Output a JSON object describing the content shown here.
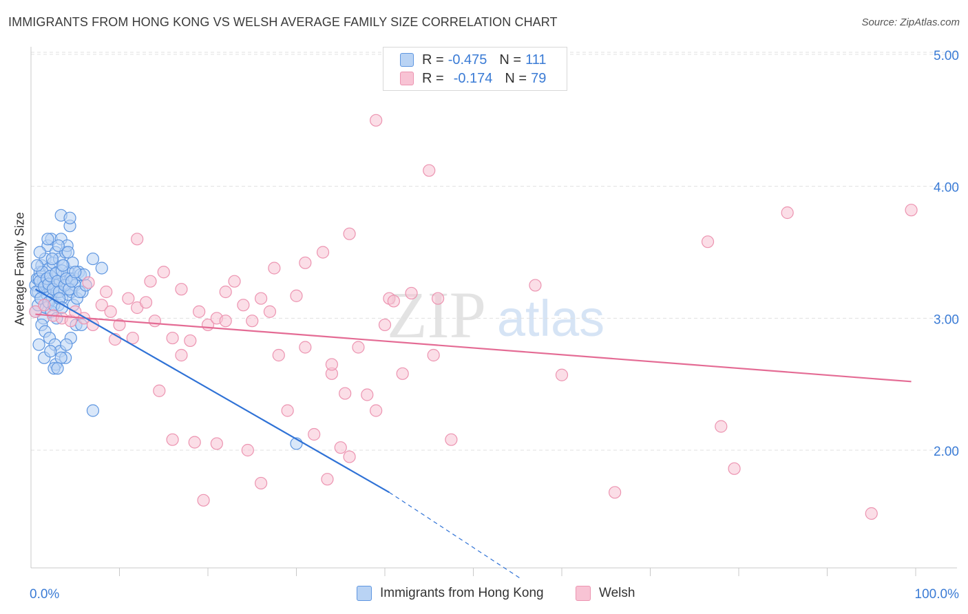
{
  "title": "IMMIGRANTS FROM HONG KONG VS WELSH AVERAGE FAMILY SIZE CORRELATION CHART",
  "source": "Source: ZipAtlas.com",
  "watermark": {
    "zip": "ZIP",
    "atlas": "atlas"
  },
  "legend": {
    "rows": [
      {
        "r_label": "R =",
        "r_value": "-0.475",
        "n_label": "N =",
        "n_value": "111"
      },
      {
        "r_label": "R =",
        "r_value": "-0.174",
        "n_label": "N =",
        "n_value": "79"
      }
    ]
  },
  "colors": {
    "blue_fill": "#b9d3f4",
    "blue_stroke": "#5d95e0",
    "blue_line": "#2f72d6",
    "pink_fill": "#f8c3d4",
    "pink_stroke": "#ec93b0",
    "pink_line": "#e46b94",
    "tick_text": "#3a7bd5",
    "grid": "#e0e0e0"
  },
  "chart_data": {
    "type": "scatter",
    "xlabel": "",
    "ylabel": "Average Family Size",
    "xlim": [
      0,
      100
    ],
    "ylim": [
      1.0,
      5.1
    ],
    "x_tick_labels": [
      "0.0%",
      "100.0%"
    ],
    "y_ticks": [
      2.0,
      3.0,
      4.0,
      5.0
    ],
    "y_tick_labels": [
      "2.00",
      "3.00",
      "4.00",
      "5.00"
    ],
    "grid": true,
    "legend_position": "top-center",
    "series": [
      {
        "name": "Immigrants from Hong Kong",
        "color": "#5d95e0",
        "x": [
          0.5,
          0.7,
          0.8,
          1.0,
          1.1,
          1.2,
          1.3,
          1.4,
          1.5,
          1.6,
          1.7,
          1.8,
          1.9,
          2.0,
          2.1,
          2.2,
          2.3,
          2.4,
          2.5,
          2.6,
          2.7,
          2.8,
          2.9,
          3.0,
          3.1,
          3.2,
          3.3,
          3.4,
          3.5,
          3.6,
          3.7,
          3.8,
          3.9,
          4.0,
          4.1,
          4.2,
          4.3,
          4.4,
          4.5,
          4.6,
          4.7,
          4.8,
          4.9,
          5.0,
          5.2,
          5.4,
          5.6,
          5.8,
          6.0,
          0.6,
          0.9,
          1.0,
          1.3,
          1.5,
          1.8,
          2.0,
          2.2,
          2.5,
          2.8,
          3.0,
          3.2,
          3.5,
          3.8,
          4.0,
          4.3,
          4.6,
          5.0,
          5.5,
          6.2,
          0.5,
          0.8,
          1.1,
          1.4,
          1.7,
          2.0,
          2.3,
          2.6,
          2.9,
          3.2,
          3.5,
          1.2,
          1.6,
          2.1,
          2.7,
          3.3,
          3.9,
          4.5,
          5.1,
          0.7,
          1.0,
          1.9,
          2.4,
          3.1,
          3.6,
          4.2,
          0.9,
          1.5,
          2.2,
          2.8,
          3.4,
          4.0,
          5.7,
          7.0,
          2.6,
          3.0,
          3.4,
          4.4,
          7.0,
          8.0,
          30.0
        ],
        "y": [
          3.25,
          3.3,
          3.2,
          3.35,
          3.15,
          3.4,
          3.22,
          3.28,
          3.1,
          3.45,
          3.3,
          3.18,
          3.55,
          3.25,
          3.38,
          3.2,
          3.6,
          3.15,
          3.42,
          3.3,
          3.25,
          3.5,
          3.2,
          3.35,
          3.1,
          3.45,
          3.28,
          3.6,
          3.15,
          3.32,
          3.4,
          3.22,
          3.5,
          3.25,
          3.55,
          3.18,
          3.35,
          3.7,
          3.3,
          3.2,
          3.42,
          3.1,
          3.3,
          3.25,
          3.15,
          3.35,
          3.33,
          3.2,
          3.33,
          3.2,
          3.3,
          3.28,
          3.35,
          3.24,
          3.3,
          3.26,
          3.32,
          3.22,
          3.34,
          3.28,
          3.2,
          3.36,
          3.25,
          3.3,
          3.22,
          3.28,
          3.35,
          3.2,
          3.25,
          3.05,
          3.1,
          3.15,
          3.0,
          3.08,
          3.12,
          3.05,
          3.1,
          3.0,
          3.15,
          3.08,
          2.95,
          2.9,
          2.85,
          2.8,
          2.75,
          2.7,
          2.85,
          2.95,
          3.4,
          3.5,
          3.6,
          3.45,
          3.55,
          3.4,
          3.5,
          2.8,
          2.7,
          2.75,
          2.65,
          2.7,
          2.8,
          2.95,
          2.3,
          2.62,
          2.62,
          3.78,
          3.76,
          3.45,
          3.38,
          2.05
        ],
        "trend": {
          "x": [
            0.5,
            40.5
          ],
          "y": [
            3.22,
            1.68
          ]
        },
        "trend_dashed": {
          "x": [
            40.5,
            55.5
          ],
          "y": [
            1.68,
            1.02
          ]
        }
      },
      {
        "name": "Welsh",
        "color": "#ec93b0",
        "x": [
          0.5,
          1.5,
          2.5,
          3.5,
          4.5,
          5.0,
          6.0,
          7.0,
          8.0,
          9.0,
          10.0,
          11.0,
          12.0,
          13.0,
          14.0,
          15.0,
          16.0,
          17.0,
          18.0,
          19.0,
          20.0,
          21.0,
          22.0,
          23.0,
          24.0,
          25.0,
          26.0,
          27.0,
          28.0,
          29.0,
          30.0,
          31.0,
          32.0,
          33.0,
          34.0,
          35.0,
          36.0,
          37.0,
          38.0,
          39.0,
          40.0,
          24.5,
          39.0,
          26.0,
          45.0,
          46.0,
          47.5,
          60.0,
          66.0,
          76.5,
          78.0,
          79.5,
          85.5,
          95.0,
          99.5,
          12.0,
          14.5,
          17.0,
          19.5,
          22.0,
          13.5,
          16.0,
          18.5,
          21.0,
          9.5,
          11.5,
          33.5,
          36.0,
          31.0,
          27.5,
          40.5,
          57.0,
          34.0,
          41.0,
          43.0,
          45.5,
          35.5,
          42.0,
          6.5,
          8.5
        ],
        "y": [
          3.05,
          3.1,
          3.02,
          3.0,
          2.98,
          3.05,
          3.0,
          2.95,
          3.1,
          3.05,
          2.95,
          3.15,
          3.08,
          3.12,
          2.98,
          3.35,
          2.85,
          2.72,
          2.83,
          3.05,
          2.95,
          3.0,
          3.2,
          3.28,
          3.1,
          2.98,
          3.15,
          3.05,
          2.72,
          2.3,
          3.17,
          3.42,
          2.12,
          3.5,
          2.58,
          2.02,
          3.64,
          2.78,
          2.42,
          2.3,
          2.95,
          2.0,
          4.5,
          1.75,
          4.12,
          3.15,
          2.08,
          2.57,
          1.68,
          3.58,
          2.18,
          1.86,
          3.8,
          1.52,
          3.82,
          3.6,
          2.45,
          3.22,
          1.62,
          2.98,
          3.28,
          2.08,
          2.06,
          2.05,
          2.84,
          2.85,
          1.78,
          1.95,
          2.78,
          3.38,
          3.15,
          3.25,
          2.65,
          3.13,
          3.19,
          2.72,
          2.43,
          2.58,
          3.27,
          3.2
        ],
        "trend": {
          "x": [
            0.5,
            99.5
          ],
          "y": [
            3.03,
            2.52
          ]
        }
      }
    ]
  },
  "bottom_legend": [
    {
      "label": "Immigrants from Hong Kong"
    },
    {
      "label": "Welsh"
    }
  ]
}
